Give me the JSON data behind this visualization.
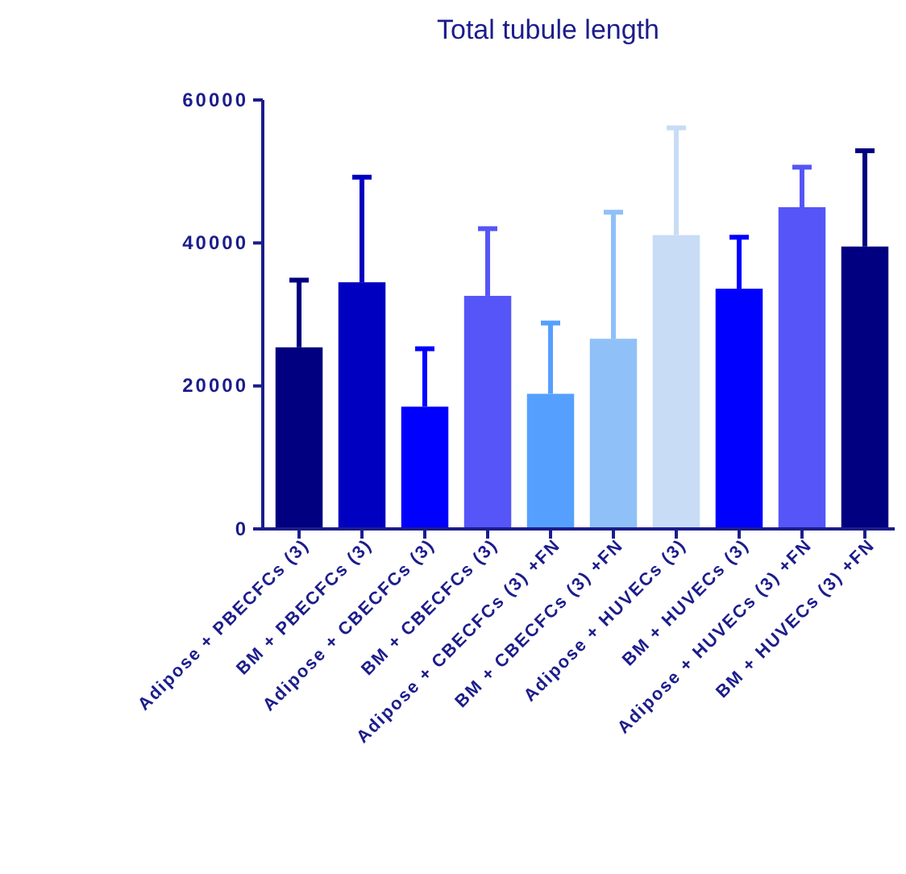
{
  "chart_data": {
    "type": "bar",
    "title": "Total tubule length",
    "categories": [
      "Adipose + PBECFCs (3)",
      "BM + PBECFCs (3)",
      "Adipose + CBECFCs (3)",
      "BM + CBECFCs (3)",
      "Adipose + CBECFCs (3) +FN",
      "BM + CBECFCs (3) +FN",
      "Adipose + HUVECs (3)",
      "BM + HUVECs (3)",
      "Adipose + HUVECs (3) +FN",
      "BM + HUVECs (3) +FN"
    ],
    "values": [
      25400,
      34500,
      17100,
      32600,
      18900,
      26600,
      41100,
      33600,
      45000,
      39500
    ],
    "errors": [
      [
        25400,
        34800
      ],
      [
        34500,
        49200
      ],
      [
        17100,
        25200
      ],
      [
        32600,
        42000
      ],
      [
        18900,
        28800
      ],
      [
        26600,
        44300
      ],
      [
        41100,
        56100
      ],
      [
        33600,
        40800
      ],
      [
        45000,
        50600
      ],
      [
        39500,
        52900
      ]
    ],
    "colors": [
      "#000080",
      "#0000c0",
      "#0000ff",
      "#5555f8",
      "#55a0ff",
      "#90c0f8",
      "#c8dcf5",
      "#0000ff",
      "#5555f8",
      "#000080"
    ],
    "ylim": [
      0,
      60000
    ],
    "yticks": [
      0,
      20000,
      40000,
      60000
    ],
    "grid": false
  }
}
